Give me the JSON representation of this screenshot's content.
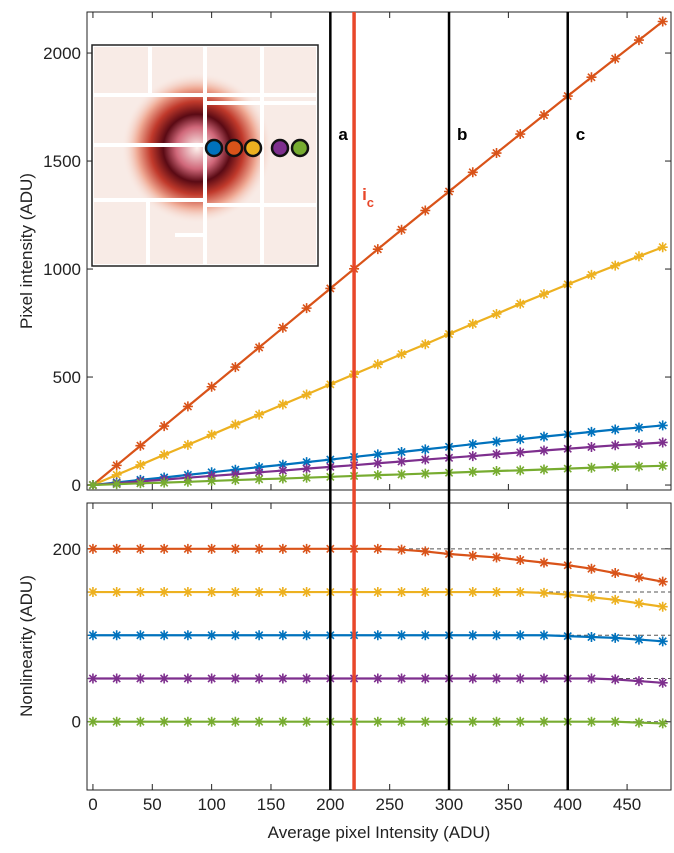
{
  "chart_data": [
    {
      "type": "line",
      "ylabel": "Pixel intensity (ADU)",
      "x": [
        0,
        20,
        40,
        60,
        80,
        100,
        120,
        140,
        160,
        180,
        200,
        220,
        240,
        260,
        280,
        300,
        320,
        340,
        360,
        380,
        400,
        420,
        440,
        460,
        480
      ],
      "xlim": [
        -5,
        487
      ],
      "ylim": [
        -23,
        2190
      ],
      "yticks": [
        0,
        500,
        1000,
        1500,
        2000
      ],
      "series": [
        {
          "color": "#d95319",
          "values": [
            0,
            91,
            182,
            273,
            364,
            455,
            546,
            637,
            728,
            819,
            910,
            1001,
            1092,
            1182,
            1271,
            1359,
            1448,
            1537,
            1625,
            1713,
            1801,
            1888,
            1974,
            2060,
            2146
          ]
        },
        {
          "color": "#edb120",
          "values": [
            0,
            47,
            93,
            140,
            186,
            233,
            280,
            326,
            373,
            419,
            466,
            513,
            559,
            606,
            652,
            699,
            746,
            792,
            839,
            884,
            929,
            973,
            1016,
            1059,
            1101
          ]
        },
        {
          "color": "#0072bd",
          "values": [
            0,
            12,
            24,
            35,
            47,
            59,
            71,
            83,
            94,
            106,
            118,
            130,
            142,
            153,
            165,
            177,
            189,
            201,
            212,
            224,
            235,
            246,
            257,
            266,
            276
          ]
        },
        {
          "color": "#7e2f8e",
          "values": [
            0,
            8,
            17,
            25,
            34,
            42,
            50,
            59,
            67,
            76,
            84,
            92,
            101,
            109,
            118,
            126,
            134,
            143,
            151,
            160,
            168,
            176,
            184,
            190,
            197
          ]
        },
        {
          "color": "#77ac30",
          "values": [
            0,
            4,
            8,
            11,
            15,
            19,
            23,
            27,
            30,
            34,
            38,
            42,
            46,
            49,
            53,
            57,
            61,
            65,
            68,
            72,
            76,
            80,
            84,
            86,
            89
          ]
        }
      ],
      "vlines": [
        {
          "x": 200,
          "label": "a",
          "color": "#000000"
        },
        {
          "x": 220,
          "label": "i",
          "subscript": "c",
          "color": "#e8472a"
        },
        {
          "x": 300,
          "label": "b",
          "color": "#000000"
        },
        {
          "x": 400,
          "label": "c",
          "color": "#000000"
        }
      ]
    },
    {
      "type": "line",
      "ylabel": "Nonlinearity (ADU)",
      "xlabel": "Average pixel Intensity (ADU)",
      "x": [
        0,
        20,
        40,
        60,
        80,
        100,
        120,
        140,
        160,
        180,
        200,
        220,
        240,
        260,
        280,
        300,
        320,
        340,
        360,
        380,
        400,
        420,
        440,
        460,
        480
      ],
      "xlim": [
        -5,
        487
      ],
      "ylim": [
        -79,
        253
      ],
      "yticks": [
        0,
        200
      ],
      "xticks": [
        0,
        50,
        100,
        150,
        200,
        250,
        300,
        350,
        400,
        450
      ],
      "series": [
        {
          "color": "#d95319",
          "reference": 200,
          "values": [
            200,
            200,
            200,
            200,
            200,
            200,
            200,
            200,
            200,
            200,
            200,
            200,
            200,
            199,
            197,
            194,
            192,
            190,
            187,
            184,
            181,
            177,
            172,
            167,
            162
          ]
        },
        {
          "color": "#edb120",
          "reference": 150,
          "values": [
            150,
            150,
            150,
            150,
            150,
            150,
            150,
            150,
            150,
            150,
            150,
            150,
            150,
            150,
            150,
            150,
            150,
            150,
            150,
            149,
            147,
            144,
            141,
            137,
            133
          ]
        },
        {
          "color": "#0072bd",
          "reference": 100,
          "values": [
            100,
            100,
            100,
            100,
            100,
            100,
            100,
            100,
            100,
            100,
            100,
            100,
            100,
            100,
            100,
            100,
            100,
            100,
            100,
            100,
            99,
            98,
            97,
            95,
            93
          ]
        },
        {
          "color": "#7e2f8e",
          "reference": 50,
          "values": [
            50,
            50,
            50,
            50,
            50,
            50,
            50,
            50,
            50,
            50,
            50,
            50,
            50,
            50,
            50,
            50,
            50,
            50,
            50,
            50,
            50,
            50,
            49,
            47,
            45
          ]
        },
        {
          "color": "#77ac30",
          "reference": 0,
          "values": [
            0,
            0,
            0,
            0,
            0,
            0,
            0,
            0,
            0,
            0,
            0,
            0,
            0,
            0,
            0,
            0,
            0,
            0,
            0,
            0,
            0,
            0,
            0,
            -1,
            -2
          ]
        }
      ]
    }
  ]
}
